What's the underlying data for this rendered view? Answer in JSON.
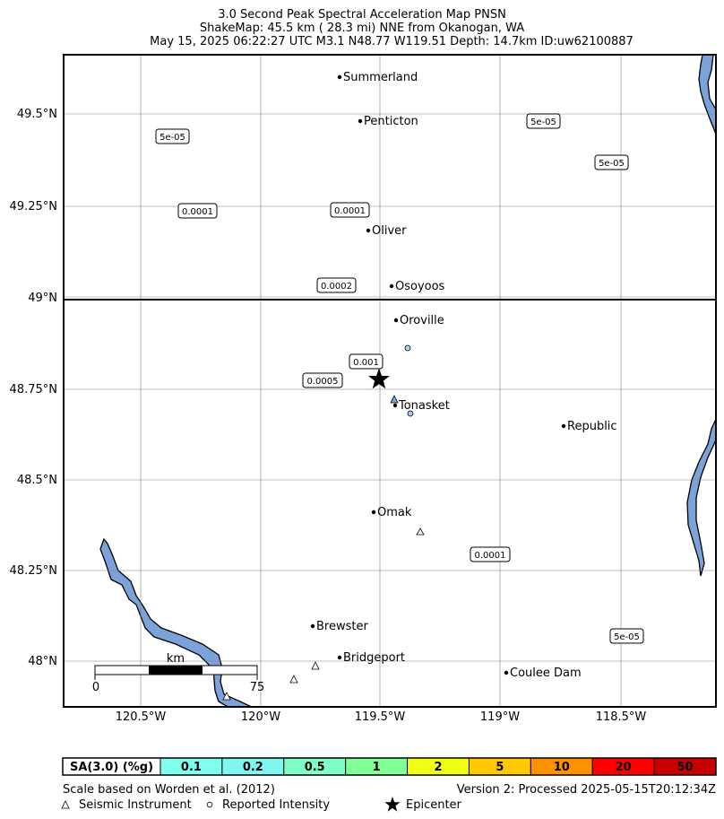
{
  "title": {
    "line1": "3.0 Second Peak Spectral Acceleration Map PNSN",
    "line2": "ShakeMap: 45.5 km (  28.3 mi) NNE from Okanogan, WA",
    "line3": "May 15, 2025 06:22:27 UTC M3.1 N48.77 W119.51 Depth: 14.7km ID:uw62100887"
  },
  "axes": {
    "x_ticks": [
      "120.5°W",
      "120°W",
      "119.5°W",
      "119°W",
      "118.5°W"
    ],
    "y_ticks": [
      "49.5°N",
      "49.25°N",
      "49°N",
      "48.75°N",
      "48.5°N",
      "48.25°N",
      "48°N"
    ]
  },
  "cities": [
    {
      "name": "Summerland"
    },
    {
      "name": "Penticton"
    },
    {
      "name": "Oliver"
    },
    {
      "name": "Osoyoos"
    },
    {
      "name": "Oroville"
    },
    {
      "name": "Tonasket"
    },
    {
      "name": "Republic"
    },
    {
      "name": "Omak"
    },
    {
      "name": "Brewster"
    },
    {
      "name": "Bridgeport"
    },
    {
      "name": "Coulee Dam"
    }
  ],
  "contour_labels": [
    "5e-05",
    "5e-05",
    "5e-05",
    "0.0001",
    "0.0001",
    "0.0002",
    "0.001",
    "0.0005",
    "0.0001",
    "5e-05"
  ],
  "scale_bar": {
    "unit": "km",
    "start": "0",
    "end": "75"
  },
  "legend": {
    "header": "SA(3.0) (%g)",
    "bins": [
      {
        "label": "0.1",
        "color": "#7ffff0"
      },
      {
        "label": "0.2",
        "color": "#7ff6f0"
      },
      {
        "label": "0.5",
        "color": "#7fffc8"
      },
      {
        "label": "1",
        "color": "#7fff96"
      },
      {
        "label": "2",
        "color": "#f0ff14"
      },
      {
        "label": "5",
        "color": "#ffc800"
      },
      {
        "label": "10",
        "color": "#ff9100"
      },
      {
        "label": "20",
        "color": "#ff0000"
      },
      {
        "label": "50",
        "color": "#c80000"
      }
    ]
  },
  "footer": {
    "scale_note": "Scale based on Worden et al. (2012)",
    "version": "Version 2: Processed 2025-05-15T20:12:34Z",
    "key_instrument": "Seismic Instrument",
    "key_intensity": "Reported Intensity",
    "key_epicenter": "Epicenter"
  },
  "colors": {
    "water": "#7ba3d9",
    "grid": "#808080",
    "frame": "#000000"
  }
}
